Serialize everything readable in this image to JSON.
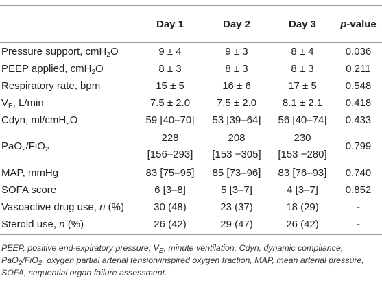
{
  "table": {
    "header": [
      [],
      [
        {
          "t": "Day 1"
        }
      ],
      [
        {
          "t": "Day 2"
        }
      ],
      [
        {
          "t": "Day 3"
        }
      ],
      [
        {
          "t": "p",
          "style": "i"
        },
        {
          "t": "-value"
        }
      ]
    ],
    "rows": [
      {
        "label": [
          {
            "t": "Pressure support, cmH"
          },
          {
            "t": "2",
            "style": "sub"
          },
          {
            "t": "O"
          }
        ],
        "cells": [
          "9 ± 4",
          "9 ± 3",
          "8 ± 4",
          "0.036"
        ]
      },
      {
        "label": [
          {
            "t": "PEEP applied, cmH"
          },
          {
            "t": "2",
            "style": "sub"
          },
          {
            "t": "O"
          }
        ],
        "cells": [
          "8 ± 3",
          "8 ± 3",
          "8 ± 3",
          "0.211"
        ]
      },
      {
        "label": [
          {
            "t": "Respiratory rate, bpm"
          }
        ],
        "cells": [
          "15 ± 5",
          "16 ± 6",
          "17 ± 5",
          "0.548"
        ]
      },
      {
        "label": [
          {
            "t": "V"
          },
          {
            "t": "E",
            "style": "sub"
          },
          {
            "t": ", L/min"
          }
        ],
        "cells": [
          "7.5 ± 2.0",
          "7.5 ± 2.0",
          "8.1 ± 2.1",
          "0.418"
        ]
      },
      {
        "label": [
          {
            "t": "Cdyn, ml/cmH"
          },
          {
            "t": "2",
            "style": "sub"
          },
          {
            "t": "O"
          }
        ],
        "cells": [
          "59 [40–70]",
          "53 [39–64]",
          "56 [40–74]",
          "0.433"
        ]
      },
      {
        "label": [
          {
            "t": "PaO"
          },
          {
            "t": "2",
            "style": "sub"
          },
          {
            "t": "/FiO"
          },
          {
            "t": "2",
            "style": "sub"
          }
        ],
        "cells": [
          [
            "228",
            "[156–293]"
          ],
          [
            "208",
            "[153 −305]"
          ],
          [
            "230",
            "[153 −280]"
          ],
          "0.799"
        ]
      },
      {
        "label": [
          {
            "t": "MAP, mmHg"
          }
        ],
        "cells": [
          "83 [75–95]",
          "85 [73–96]",
          "83 [76–93]",
          "0.740"
        ]
      },
      {
        "label": [
          {
            "t": "SOFA score"
          }
        ],
        "cells": [
          "6 [3–8]",
          "5 [3–7]",
          "4 [3–7]",
          "0.852"
        ]
      },
      {
        "label": [
          {
            "t": "Vasoactive drug use, "
          },
          {
            "t": "n",
            "style": "i"
          },
          {
            "t": " (%)"
          }
        ],
        "cells": [
          "30 (48)",
          "23 (37)",
          "18 (29)",
          "-"
        ]
      },
      {
        "label": [
          {
            "t": "Steroid use, "
          },
          {
            "t": "n",
            "style": "i"
          },
          {
            "t": " (%)"
          }
        ],
        "cells": [
          "26 (42)",
          "29 (47)",
          "26 (42)",
          "-"
        ]
      }
    ]
  },
  "footnote": [
    {
      "t": "PEEP, positive end-expiratory pressure, V"
    },
    {
      "t": "E",
      "style": "sub"
    },
    {
      "t": ", minute ventilation, Cdyn, dynamic compliance, PaO"
    },
    {
      "t": "2",
      "style": "sub"
    },
    {
      "t": "/FiO"
    },
    {
      "t": "2",
      "style": "sub"
    },
    {
      "t": ", oxygen partial arterial tension/inspired oxygen fraction, MAP, mean arterial pressure, SOFA, sequential organ failure assessment."
    }
  ]
}
